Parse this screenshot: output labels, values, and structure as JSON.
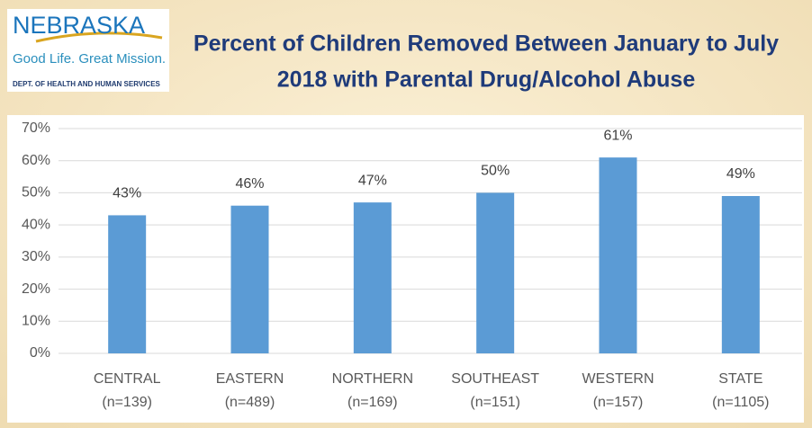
{
  "logo": {
    "name": "NEBRASKA",
    "tagline": "Good Life. Great Mission.",
    "department": "DEPT. OF HEALTH AND HUMAN SERVICES"
  },
  "chart_data": {
    "type": "bar",
    "title": [
      "Percent of Children Removed Between January to July",
      "2018 with Parental Drug/Alcohol Abuse"
    ],
    "categories": [
      [
        "CENTRAL",
        "(n=139)"
      ],
      [
        "EASTERN",
        "(n=489)"
      ],
      [
        "NORTHERN",
        "(n=169)"
      ],
      [
        "SOUTHEAST",
        "(n=151)"
      ],
      [
        "WESTERN",
        "(n=157)"
      ],
      [
        "STATE",
        "(n=1105)"
      ]
    ],
    "values": [
      43,
      46,
      47,
      50,
      61,
      49
    ],
    "value_labels": [
      "43%",
      "46%",
      "47%",
      "50%",
      "61%",
      "49%"
    ],
    "color": "#5b9bd5",
    "ylim": [
      0,
      70
    ],
    "yticks": [
      {
        "value": 0,
        "label": "0%"
      },
      {
        "value": 10,
        "label": "10%"
      },
      {
        "value": 20,
        "label": "20%"
      },
      {
        "value": 30,
        "label": "30%"
      },
      {
        "value": 40,
        "label": "40%"
      },
      {
        "value": 50,
        "label": "50%"
      },
      {
        "value": 60,
        "label": "60%"
      },
      {
        "value": 70,
        "label": "70%"
      }
    ],
    "grid": true
  }
}
